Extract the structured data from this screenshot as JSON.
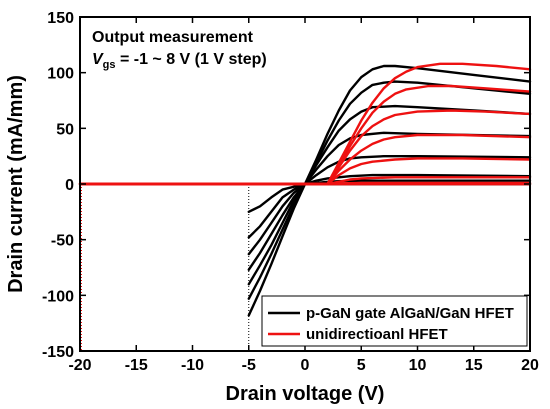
{
  "chart_data": {
    "type": "line",
    "xlabel": "Drain voltage (V)",
    "ylabel": "Drain current (mA/mm)",
    "xlim": [
      -20,
      20
    ],
    "ylim": [
      -150,
      150
    ],
    "xticks": [
      -20,
      -15,
      -10,
      -5,
      0,
      5,
      10,
      15,
      20
    ],
    "yticks": [
      -150,
      -100,
      -50,
      0,
      50,
      100,
      150
    ],
    "grid": false,
    "legend_position": "bottom-right",
    "annotations": {
      "line1": "Output measurement",
      "line2_prefix": "V",
      "line2_sub": "gs",
      "line2_rest": " = -1 ~ 8 V (1 V step)"
    },
    "reference_line_x": -5,
    "legend": [
      {
        "name": "p-GaN gate AlGaN/GaN HFET",
        "color": "#000000"
      },
      {
        "name": "unidirectioanl HFET",
        "color": "#ee1111"
      }
    ],
    "series": [
      {
        "name": "p-GaN gate AlGaN/GaN HFET",
        "color": "#000000",
        "curves": [
          [
            [
              -5,
              0
            ],
            [
              0,
              0
            ],
            [
              20,
              0
            ]
          ],
          [
            [
              -5,
              0
            ],
            [
              0,
              0
            ],
            [
              20,
              0
            ]
          ],
          [
            [
              -5,
              -25
            ],
            [
              -4,
              -20
            ],
            [
              -3,
              -12
            ],
            [
              -2,
              -5
            ],
            [
              0,
              0
            ],
            [
              1,
              1
            ],
            [
              2,
              2
            ],
            [
              3,
              2.5
            ],
            [
              5,
              3
            ],
            [
              10,
              3
            ],
            [
              20,
              3
            ]
          ],
          [
            [
              -5,
              -48
            ],
            [
              -4,
              -38
            ],
            [
              -3,
              -25
            ],
            [
              -2,
              -12
            ],
            [
              -1,
              -5
            ],
            [
              0,
              0
            ],
            [
              1,
              3
            ],
            [
              2,
              5
            ],
            [
              3,
              6
            ],
            [
              4,
              7
            ],
            [
              6,
              8
            ],
            [
              10,
              8
            ],
            [
              20,
              7
            ]
          ],
          [
            [
              -5,
              -63
            ],
            [
              -4,
              -50
            ],
            [
              -3,
              -35
            ],
            [
              -2,
              -20
            ],
            [
              -1,
              -8
            ],
            [
              0,
              0
            ],
            [
              1,
              8
            ],
            [
              2,
              15
            ],
            [
              3,
              20
            ],
            [
              4,
              23
            ],
            [
              5,
              24
            ],
            [
              7,
              25
            ],
            [
              10,
              25
            ],
            [
              20,
              24
            ]
          ],
          [
            [
              -5,
              -77
            ],
            [
              -4,
              -62
            ],
            [
              -3,
              -45
            ],
            [
              -2,
              -28
            ],
            [
              -1,
              -12
            ],
            [
              0,
              0
            ],
            [
              1,
              13
            ],
            [
              2,
              25
            ],
            [
              3,
              35
            ],
            [
              4,
              41
            ],
            [
              5,
              44
            ],
            [
              7,
              46
            ],
            [
              10,
              45
            ],
            [
              20,
              43
            ]
          ],
          [
            [
              -5,
              -90
            ],
            [
              -4,
              -73
            ],
            [
              -3,
              -55
            ],
            [
              -2,
              -35
            ],
            [
              -1,
              -15
            ],
            [
              0,
              0
            ],
            [
              1,
              17
            ],
            [
              2,
              33
            ],
            [
              3,
              48
            ],
            [
              4,
              58
            ],
            [
              5,
              65
            ],
            [
              6,
              69
            ],
            [
              8,
              70
            ],
            [
              10,
              69
            ],
            [
              15,
              66
            ],
            [
              20,
              63
            ]
          ],
          [
            [
              -5,
              -103
            ],
            [
              -4,
              -84
            ],
            [
              -3,
              -63
            ],
            [
              -2,
              -41
            ],
            [
              -1,
              -19
            ],
            [
              0,
              0
            ],
            [
              1,
              19
            ],
            [
              2,
              39
            ],
            [
              3,
              57
            ],
            [
              4,
              72
            ],
            [
              5,
              82
            ],
            [
              6,
              89
            ],
            [
              7,
              91
            ],
            [
              8,
              92
            ],
            [
              10,
              91
            ],
            [
              15,
              86
            ],
            [
              20,
              81
            ]
          ],
          [
            [
              -5,
              -118
            ],
            [
              -4,
              -96
            ],
            [
              -3,
              -72
            ],
            [
              -2,
              -47
            ],
            [
              -1,
              -22
            ],
            [
              0,
              0
            ],
            [
              1,
              22
            ],
            [
              2,
              45
            ],
            [
              3,
              66
            ],
            [
              4,
              84
            ],
            [
              5,
              96
            ],
            [
              6,
              103
            ],
            [
              7,
              106
            ],
            [
              8,
              106
            ],
            [
              10,
              104
            ],
            [
              15,
              98
            ],
            [
              20,
              92
            ]
          ]
        ]
      },
      {
        "name": "unidirectioanl HFET",
        "color": "#ee1111",
        "curves": [
          [
            [
              -20,
              0
            ],
            [
              20,
              0
            ]
          ],
          [
            [
              -20,
              0
            ],
            [
              20,
              0
            ]
          ],
          [
            [
              -20,
              0
            ],
            [
              2,
              0
            ],
            [
              3,
              0.5
            ],
            [
              5,
              1
            ],
            [
              10,
              1
            ],
            [
              20,
              1
            ]
          ],
          [
            [
              -20,
              0
            ],
            [
              2,
              0
            ],
            [
              3,
              2
            ],
            [
              4,
              4
            ],
            [
              5,
              5
            ],
            [
              8,
              6
            ],
            [
              12,
              6
            ],
            [
              20,
              6
            ]
          ],
          [
            [
              -20,
              0
            ],
            [
              2,
              0
            ],
            [
              3,
              8
            ],
            [
              4,
              14
            ],
            [
              5,
              18
            ],
            [
              6,
              20
            ],
            [
              8,
              22
            ],
            [
              10,
              23
            ],
            [
              14,
              23
            ],
            [
              20,
              22
            ]
          ],
          [
            [
              -20,
              0
            ],
            [
              2,
              0
            ],
            [
              3,
              12
            ],
            [
              4,
              22
            ],
            [
              5,
              30
            ],
            [
              6,
              36
            ],
            [
              7,
              40
            ],
            [
              8,
              42
            ],
            [
              10,
              44
            ],
            [
              14,
              44
            ],
            [
              20,
              42
            ]
          ],
          [
            [
              -20,
              0
            ],
            [
              2,
              0
            ],
            [
              3,
              15
            ],
            [
              4,
              30
            ],
            [
              5,
              43
            ],
            [
              6,
              52
            ],
            [
              7,
              58
            ],
            [
              8,
              62
            ],
            [
              10,
              65
            ],
            [
              13,
              66
            ],
            [
              16,
              65
            ],
            [
              20,
              63
            ]
          ],
          [
            [
              -20,
              0
            ],
            [
              2,
              0
            ],
            [
              3,
              17
            ],
            [
              4,
              34
            ],
            [
              5,
              50
            ],
            [
              6,
              64
            ],
            [
              7,
              74
            ],
            [
              8,
              81
            ],
            [
              9,
              85
            ],
            [
              11,
              88
            ],
            [
              13,
              88
            ],
            [
              16,
              86
            ],
            [
              20,
              83
            ]
          ],
          [
            [
              -20,
              0
            ],
            [
              2,
              0
            ],
            [
              3,
              19
            ],
            [
              4,
              38
            ],
            [
              5,
              57
            ],
            [
              6,
              73
            ],
            [
              7,
              86
            ],
            [
              8,
              95
            ],
            [
              9,
              101
            ],
            [
              10,
              105
            ],
            [
              12,
              108
            ],
            [
              14,
              108
            ],
            [
              17,
              106
            ],
            [
              20,
              103
            ]
          ]
        ]
      }
    ]
  }
}
